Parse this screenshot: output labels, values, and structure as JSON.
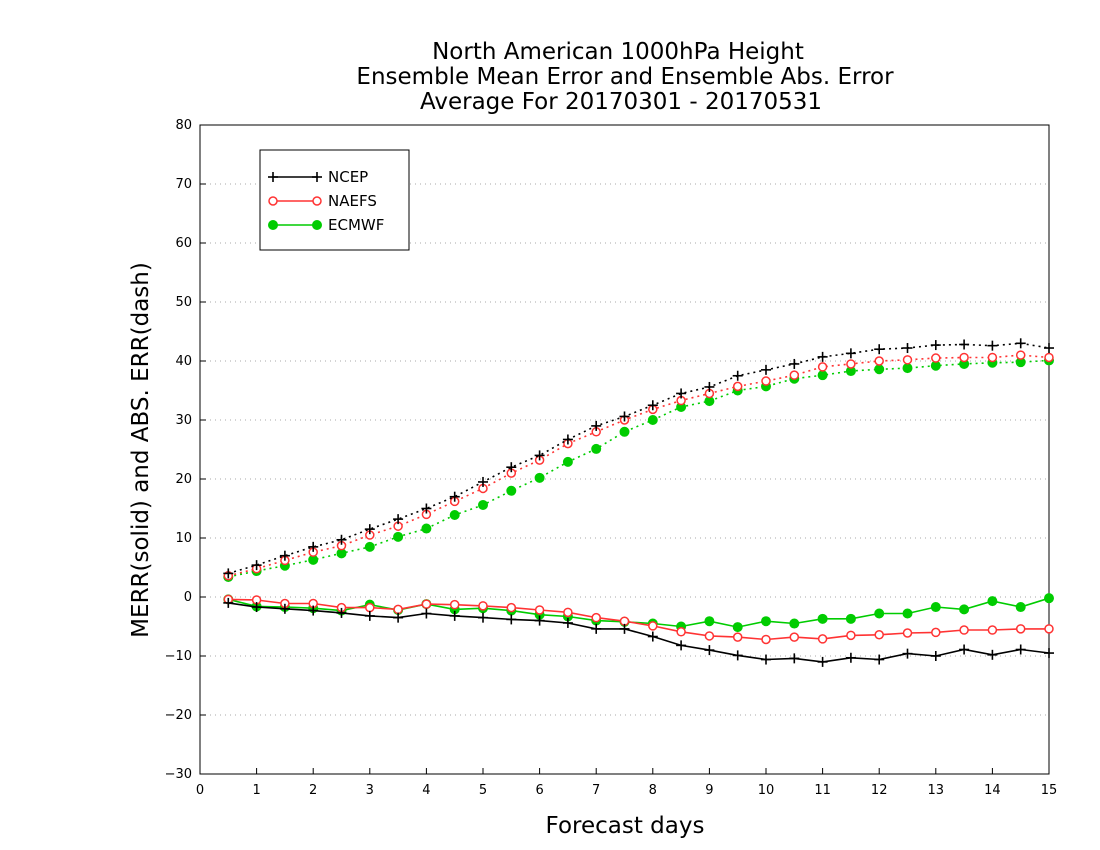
{
  "chart_data": {
    "type": "line",
    "title": [
      "North American 1000hPa Height",
      "Ensemble Mean Error and Ensemble Abs. Error",
      "Average For 20170301 - 20170531"
    ],
    "xlabel": "Forecast days",
    "ylabel": "MERR(solid) and ABS. ERR(dash)",
    "xlim": [
      0,
      15
    ],
    "ylim": [
      -30,
      80
    ],
    "xticks": [
      0,
      1,
      2,
      3,
      4,
      5,
      6,
      7,
      8,
      9,
      10,
      11,
      12,
      13,
      14,
      15
    ],
    "yticks": [
      -30,
      -20,
      -10,
      0,
      10,
      20,
      30,
      40,
      50,
      60,
      70,
      80
    ],
    "xtick_labels": [
      "0",
      "1",
      "2",
      "3",
      "4",
      "5",
      "6",
      "7",
      "8",
      "9",
      "10",
      "11",
      "12",
      "13",
      "14",
      "15"
    ],
    "ytick_labels": [
      "−30",
      "−20",
      "−10",
      "0",
      "10",
      "20",
      "30",
      "40",
      "50",
      "60",
      "70",
      "80"
    ],
    "grid": "horizontal dotted",
    "legend_position": "top-left",
    "x": [
      0.5,
      1,
      1.5,
      2,
      2.5,
      3,
      3.5,
      4,
      4.5,
      5,
      5.5,
      6,
      6.5,
      7,
      7.5,
      8,
      8.5,
      9,
      9.5,
      10,
      10.5,
      11,
      11.5,
      12,
      12.5,
      13,
      13.5,
      14,
      14.5,
      15
    ],
    "series": [
      {
        "name": "NCEP",
        "color": "#000000",
        "marker": "plus",
        "merr": [
          -1,
          -1.7,
          -2,
          -2.3,
          -2.7,
          -3.2,
          -3.5,
          -2.8,
          -3.2,
          -3.5,
          -3.8,
          -4,
          -4.4,
          -5.4,
          -5.4,
          -6.7,
          -8.2,
          -9,
          -9.9,
          -10.6,
          -10.4,
          -11,
          -10.3,
          -10.6,
          -9.6,
          -10,
          -8.9,
          -9.8,
          -8.9,
          -9.5
        ],
        "abs_err": [
          4,
          5.4,
          7,
          8.5,
          9.7,
          11.5,
          13.2,
          15,
          17,
          19.5,
          22,
          24,
          26.7,
          29,
          30.6,
          32.5,
          34.5,
          35.6,
          37.5,
          38.5,
          39.5,
          40.7,
          41.3,
          42,
          42.2,
          42.7,
          42.8,
          42.6,
          43,
          42.2
        ]
      },
      {
        "name": "NAEFS",
        "color": "#ff3333",
        "marker": "open-circle",
        "merr": [
          -0.4,
          -0.5,
          -1.1,
          -1.1,
          -1.8,
          -1.8,
          -2.1,
          -1.2,
          -1.3,
          -1.5,
          -1.8,
          -2.2,
          -2.6,
          -3.5,
          -4.1,
          -4.9,
          -5.9,
          -6.6,
          -6.8,
          -7.2,
          -6.8,
          -7.1,
          -6.5,
          -6.4,
          -6.1,
          -6,
          -5.6,
          -5.6,
          -5.4,
          -5.4
        ],
        "abs_err": [
          3.6,
          4.8,
          6.2,
          7.6,
          8.7,
          10.5,
          12,
          14,
          16.2,
          18.4,
          21,
          23.2,
          26,
          28,
          30,
          31.8,
          33.3,
          34.5,
          35.7,
          36.6,
          37.6,
          39,
          39.5,
          40,
          40.2,
          40.5,
          40.6,
          40.6,
          41,
          40.6
        ]
      },
      {
        "name": "ECMWF",
        "color": "#00cc00",
        "marker": "filled-circle",
        "merr": [
          -0.4,
          -1.6,
          -1.7,
          -1.9,
          -2.3,
          -1.3,
          -2.2,
          -1.2,
          -2.1,
          -1.9,
          -2.3,
          -3,
          -3.3,
          -4,
          -4.2,
          -4.5,
          -5,
          -4.1,
          -5.1,
          -4.1,
          -4.5,
          -3.7,
          -3.7,
          -2.8,
          -2.8,
          -1.7,
          -2.1,
          -0.7,
          -1.7,
          -0.2
        ],
        "abs_err": [
          3.4,
          4.4,
          5.3,
          6.3,
          7.4,
          8.5,
          10.2,
          11.6,
          13.9,
          15.6,
          18,
          20.2,
          22.9,
          25.1,
          28,
          30,
          32.2,
          33.2,
          35,
          35.7,
          37,
          37.6,
          38.3,
          38.6,
          38.8,
          39.2,
          39.5,
          39.7,
          39.8,
          40.1
        ]
      }
    ]
  }
}
